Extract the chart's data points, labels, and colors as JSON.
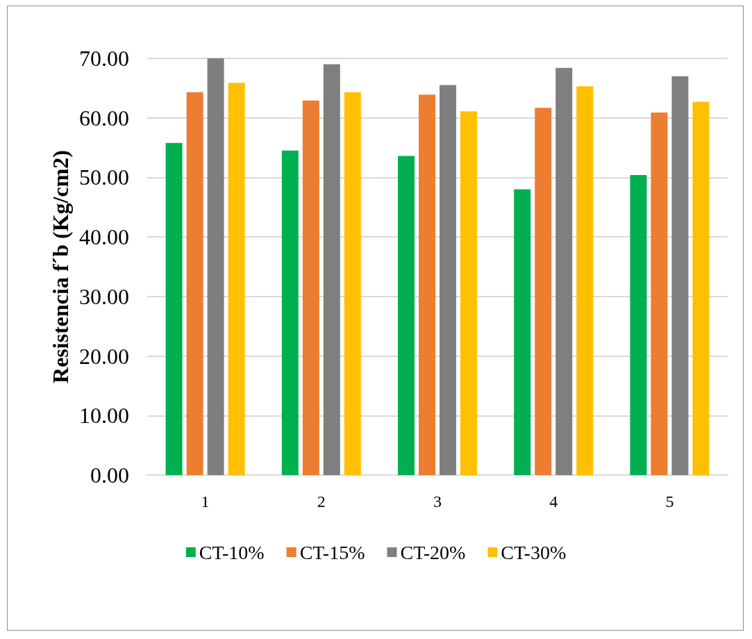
{
  "chart_data": {
    "type": "bar",
    "ylabel": "Resistencia f´b (Kg/cm2)",
    "categories": [
      "1",
      "2",
      "3",
      "4",
      "5"
    ],
    "series": [
      {
        "name": "CT-10%",
        "color": "#00b050",
        "values": [
          55.8,
          54.5,
          53.6,
          48.0,
          50.4
        ]
      },
      {
        "name": "CT-15%",
        "color": "#ed7d31",
        "values": [
          64.3,
          62.9,
          63.9,
          61.7,
          60.9
        ]
      },
      {
        "name": "CT-20%",
        "color": "#7f7f7f",
        "values": [
          70.0,
          69.0,
          65.5,
          68.4,
          67.0
        ]
      },
      {
        "name": "CT-30%",
        "color": "#ffc000",
        "values": [
          65.9,
          64.3,
          61.1,
          65.3,
          62.7
        ]
      }
    ],
    "ylim": [
      0,
      70
    ],
    "yticks": [
      {
        "value": 0,
        "label": "0.00"
      },
      {
        "value": 10,
        "label": "10.00"
      },
      {
        "value": 20,
        "label": "20.00"
      },
      {
        "value": 30,
        "label": "30.00"
      },
      {
        "value": 40,
        "label": "40.00"
      },
      {
        "value": 50,
        "label": "50.00"
      },
      {
        "value": 60,
        "label": "60.00"
      },
      {
        "value": 70,
        "label": "70.00"
      }
    ],
    "grid": "y",
    "legend": "bottom"
  }
}
